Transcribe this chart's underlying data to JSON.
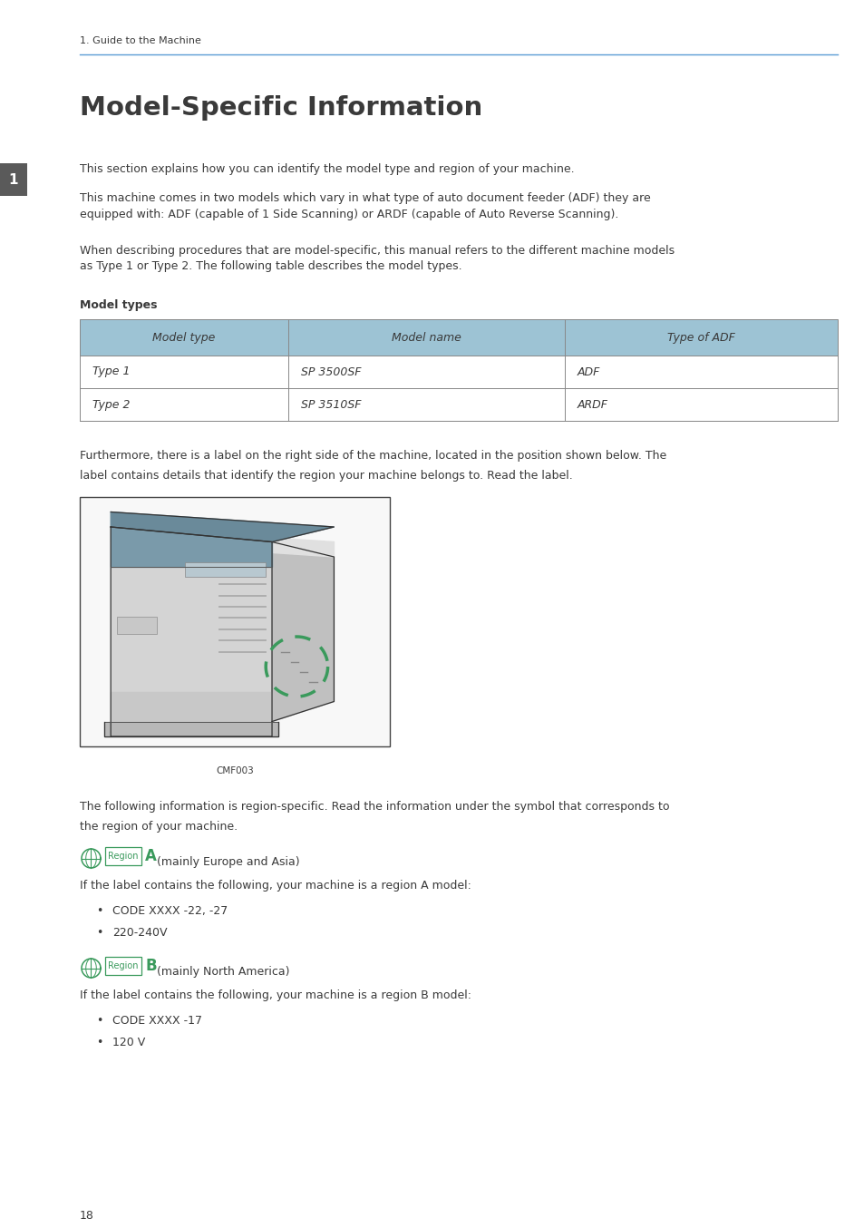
{
  "bg_color": "#ffffff",
  "page_width": 9.54,
  "page_height": 13.54,
  "dpi": 100,
  "header_text": "1. Guide to the Machine",
  "header_line_color": "#5b9bd5",
  "title": "Model-Specific Information",
  "sidebar_color": "#5a5a5a",
  "sidebar_number": "1",
  "body_text_1": "This section explains how you can identify the model type and region of your machine.",
  "body_text_2": "This machine comes in two models which vary in what type of auto document feeder (ADF) they are\nequipped with: ADF (capable of 1 Side Scanning) or ARDF (capable of Auto Reverse Scanning).",
  "body_text_3": "When describing procedures that are model-specific, this manual refers to the different machine models\nas Type 1 or Type 2. The following table describes the model types.",
  "table_header_bg": "#9dc3d4",
  "table_border_color": "#888888",
  "table_section_label": "Model types",
  "table_headers": [
    "Model type",
    "Model name",
    "Type of ADF"
  ],
  "table_rows": [
    [
      "Type 1",
      "SP 3500SF",
      "ADF"
    ],
    [
      "Type 2",
      "SP 3510SF",
      "ARDF"
    ]
  ],
  "after_table_text_1": "Furthermore, there is a label on the right side of the machine, located in the position shown below. The",
  "after_table_text_2": "label contains details that identify the region your machine belongs to. Read the label.",
  "image_caption": "CMF003",
  "following_text_1": "The following information is region-specific. Read the information under the symbol that corresponds to",
  "following_text_2": "the region of your machine.",
  "region_a_text": "(mainly Europe and Asia)",
  "region_a_desc": "If the label contains the following, your machine is a region A model:",
  "region_a_bullets": [
    "CODE XXXX -22, -27",
    "220-240V"
  ],
  "region_b_text": "(mainly North America)",
  "region_b_desc": "If the label contains the following, your machine is a region B model:",
  "region_b_bullets": [
    "CODE XXXX -17",
    "120 V"
  ],
  "page_number": "18",
  "green_color": "#3a9a5c",
  "text_color": "#3a3a3a",
  "font_family": "DejaVu Sans",
  "fs_body": 9.0,
  "fs_title": 21,
  "fs_header": 8.0,
  "fs_small": 7.5
}
